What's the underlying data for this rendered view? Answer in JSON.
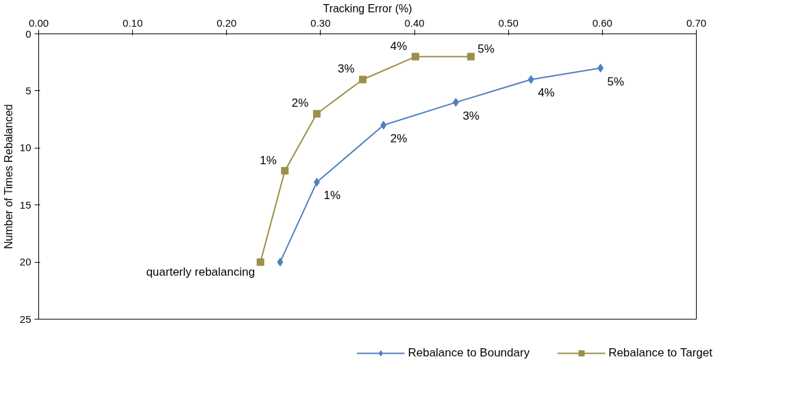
{
  "chart_data": {
    "type": "line",
    "xlabel": "Tracking Error (%)",
    "ylabel": "Number of Times Rebalanced",
    "xlim": [
      0,
      0.7
    ],
    "xticks": [
      {
        "value": 0,
        "label": "0.00"
      },
      {
        "value": 0.1,
        "label": "0.10"
      },
      {
        "value": 0.2,
        "label": "0.20"
      },
      {
        "value": 0.3,
        "label": "0.30"
      },
      {
        "value": 0.4,
        "label": "0.40"
      },
      {
        "value": 0.5,
        "label": "0.50"
      },
      {
        "value": 0.6,
        "label": "0.60"
      },
      {
        "value": 0.7,
        "label": "0.70"
      }
    ],
    "ylim": [
      25,
      0
    ],
    "yticks": [
      0,
      5,
      10,
      15,
      20,
      25
    ],
    "grid": false,
    "legend": "bottom",
    "line_style": "solid",
    "series": [
      {
        "name": "Rebalance to Boundary",
        "color": "#4f81bd",
        "marker": "diamond",
        "x": [
          0.257,
          0.296,
          0.367,
          0.444,
          0.524,
          0.598
        ],
        "values": [
          20,
          13,
          8,
          6,
          4,
          3
        ]
      },
      {
        "name": "Rebalance to Target",
        "color": "#9c8f4a",
        "marker": "square",
        "x": [
          0.236,
          0.262,
          0.296,
          0.345,
          0.401,
          0.46
        ],
        "values": [
          20,
          12,
          7,
          4,
          2,
          2
        ]
      }
    ],
    "annotations": [
      {
        "text": "quarterly rebalancing",
        "x": 0.236,
        "y": 20
      },
      {
        "text": "1%",
        "x": 0.296,
        "y": 13
      },
      {
        "text": "2%",
        "x": 0.367,
        "y": 8
      },
      {
        "text": "3%",
        "x": 0.444,
        "y": 6
      },
      {
        "text": "4%",
        "x": 0.524,
        "y": 4
      },
      {
        "text": "5%",
        "x": 0.598,
        "y": 3
      },
      {
        "text": "1%",
        "x": 0.262,
        "y": 12
      },
      {
        "text": "2%",
        "x": 0.296,
        "y": 7
      },
      {
        "text": "3%",
        "x": 0.345,
        "y": 4
      },
      {
        "text": "4%",
        "x": 0.401,
        "y": 2
      },
      {
        "text": "5%",
        "x": 0.46,
        "y": 2
      }
    ]
  }
}
